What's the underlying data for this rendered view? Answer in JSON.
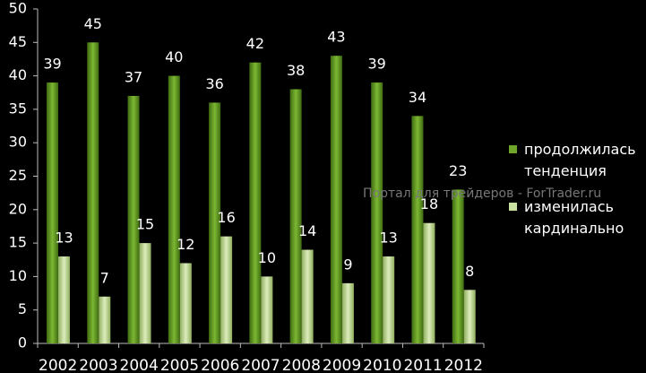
{
  "chart_data": {
    "type": "bar",
    "categories": [
      "2002",
      "2003",
      "2004",
      "2005",
      "2006",
      "2007",
      "2008",
      "2009",
      "2010",
      "2011",
      "2012"
    ],
    "series": [
      {
        "name": "продолжилась тенденция",
        "color": "#6fa52a",
        "values": [
          39,
          45,
          37,
          40,
          36,
          42,
          38,
          43,
          39,
          34,
          23
        ]
      },
      {
        "name": "изменилась кардинально",
        "color": "#c9e0a0",
        "values": [
          13,
          7,
          15,
          12,
          16,
          10,
          14,
          9,
          13,
          18,
          8
        ]
      }
    ],
    "ylim": [
      0,
      50
    ],
    "yticks": [
      0,
      5,
      10,
      15,
      20,
      25,
      30,
      35,
      40,
      45,
      50
    ],
    "watermark": "Портал для трейдеров - ForTrader.ru"
  }
}
